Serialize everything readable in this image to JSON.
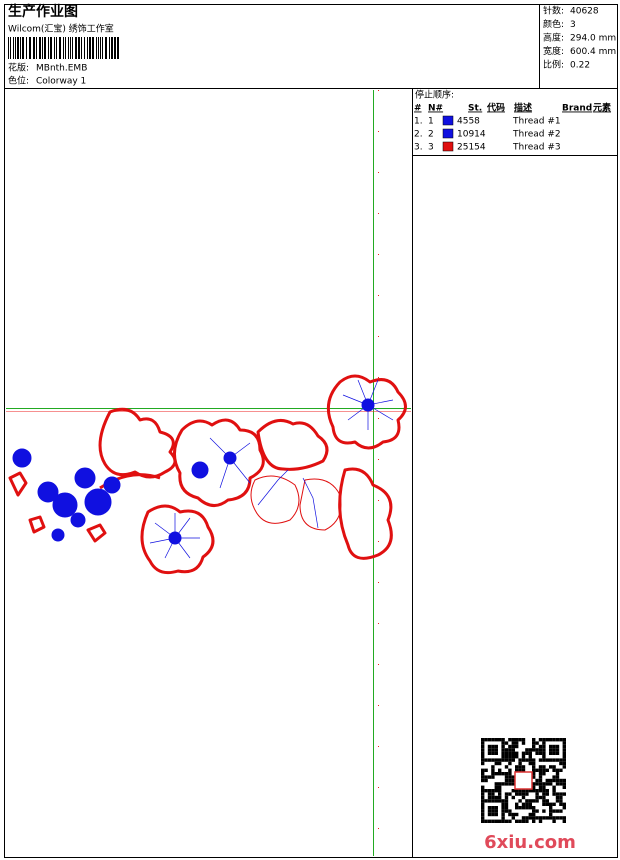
{
  "header": {
    "title": "生产作业图",
    "studio": "Wilcom(汇宝) 绣饰工作室",
    "design": {
      "label": "花版:",
      "value": "MBnth.EMB"
    },
    "colorway": {
      "label": "色位:",
      "value": "Colorway 1"
    }
  },
  "stats": [
    {
      "label": "针数:",
      "value": "40628"
    },
    {
      "label": "颜色:",
      "value": "3"
    },
    {
      "label": "高度:",
      "value": "294.0 mm"
    },
    {
      "label": "宽度:",
      "value": "600.4 mm"
    },
    {
      "label": "比例:",
      "value": "0.22"
    }
  ],
  "sequence": {
    "title": "停止顺序:",
    "columns": [
      "#",
      "N#",
      "St.",
      "代码",
      "描述",
      "Brand",
      "元素"
    ],
    "rows": [
      {
        "index": "1.",
        "n": "1",
        "color": "#1010e0",
        "code": "4558",
        "desc": "Thread #1"
      },
      {
        "index": "2.",
        "n": "2",
        "color": "#1010e0",
        "code": "10914",
        "desc": "Thread #2"
      },
      {
        "index": "3.",
        "n": "3",
        "color": "#e01010",
        "code": "25154",
        "desc": "Thread #3"
      }
    ]
  },
  "watermark": "6xiu.com"
}
